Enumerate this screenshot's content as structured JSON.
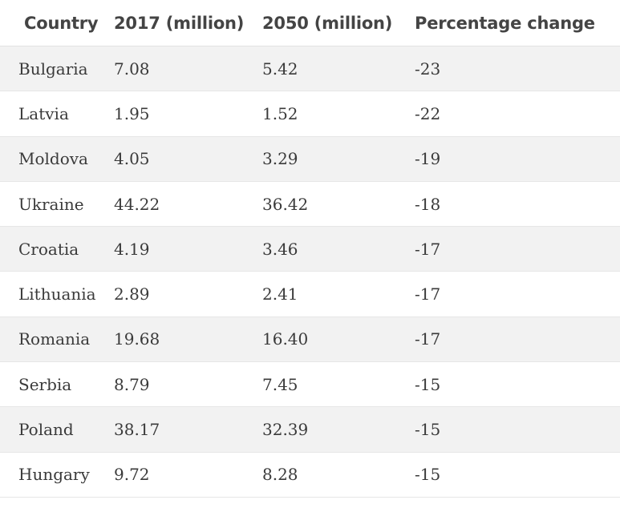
{
  "chart_data": {
    "type": "table",
    "columns": [
      "Country",
      "2017 (million)",
      "2050 (million)",
      "Percentage change"
    ],
    "rows": [
      [
        "Bulgaria",
        "7.08",
        "5.42",
        "-23"
      ],
      [
        "Latvia",
        "1.95",
        "1.52",
        "-22"
      ],
      [
        "Moldova",
        "4.05",
        "3.29",
        "-19"
      ],
      [
        "Ukraine",
        "44.22",
        "36.42",
        "-18"
      ],
      [
        "Croatia",
        "4.19",
        "3.46",
        "-17"
      ],
      [
        "Lithuania",
        "2.89",
        "2.41",
        "-17"
      ],
      [
        "Romania",
        "19.68",
        "16.40",
        "-17"
      ],
      [
        "Serbia",
        "8.79",
        "7.45",
        "-15"
      ],
      [
        "Poland",
        "38.17",
        "32.39",
        "-15"
      ],
      [
        "Hungary",
        "9.72",
        "8.28",
        "-15"
      ]
    ]
  }
}
